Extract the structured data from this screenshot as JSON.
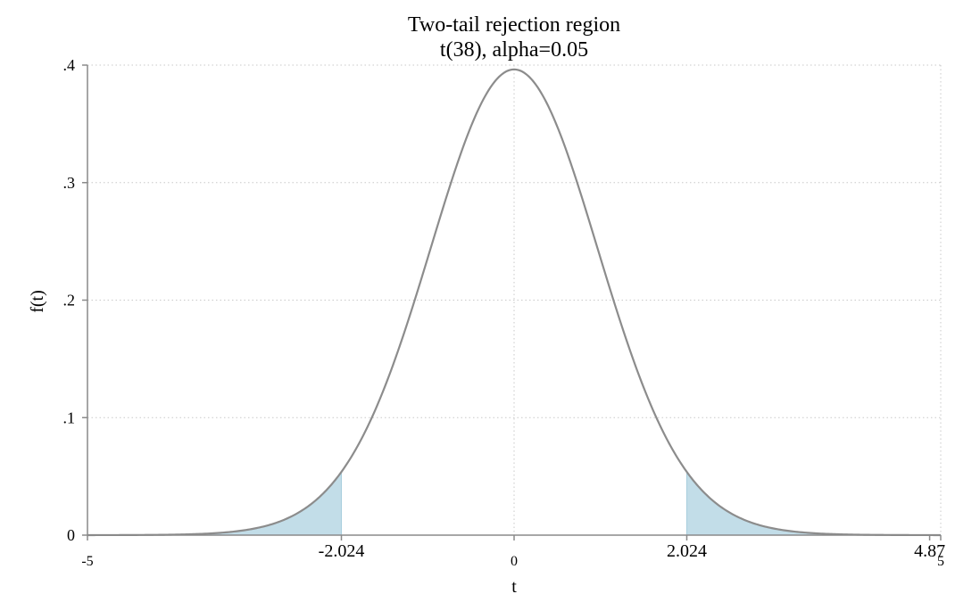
{
  "chart_data": {
    "type": "area",
    "title": "Two-tail rejection region",
    "subtitle": "t(38), alpha=0.05",
    "xlabel": "t",
    "ylabel": "f(t)",
    "xlim": [
      -5,
      5
    ],
    "ylim": [
      0,
      0.4
    ],
    "grid": true,
    "df": 38,
    "alpha": 0.05,
    "critical_values": [
      -2.024,
      2.024
    ],
    "x_ticks": [
      {
        "value": -5,
        "label": "-5"
      },
      {
        "value": -2.024,
        "label": "-2.024"
      },
      {
        "value": 0,
        "label": "0"
      },
      {
        "value": 2.024,
        "label": "2.024"
      },
      {
        "value": 4.87,
        "label": "4.87"
      },
      {
        "value": 5,
        "label": "5"
      }
    ],
    "y_ticks": [
      {
        "value": 0,
        "label": "0"
      },
      {
        "value": 0.1,
        "label": ".1"
      },
      {
        "value": 0.2,
        "label": ".2"
      },
      {
        "value": 0.3,
        "label": ".3"
      },
      {
        "value": 0.4,
        "label": ".4"
      }
    ],
    "series": [
      {
        "values_x": [
          -5,
          -4.5,
          -4,
          -3.5,
          -3,
          -2.5,
          -2.024,
          -1.5,
          -1,
          -0.5,
          0,
          0.5,
          1,
          1.5,
          2.024,
          2.5,
          3,
          3.5,
          4,
          4.5,
          5
        ],
        "values_y": [
          0.0001,
          0.0002,
          0.0006,
          0.0017,
          0.0051,
          0.0179,
          0.0523,
          0.1282,
          0.2404,
          0.3503,
          0.3964,
          0.3503,
          0.2404,
          0.1282,
          0.0523,
          0.0179,
          0.0051,
          0.0017,
          0.0006,
          0.0002,
          0.0001
        ]
      }
    ],
    "colors": {
      "curve": "#8c8c8c",
      "shade": "#c2dde8"
    }
  }
}
